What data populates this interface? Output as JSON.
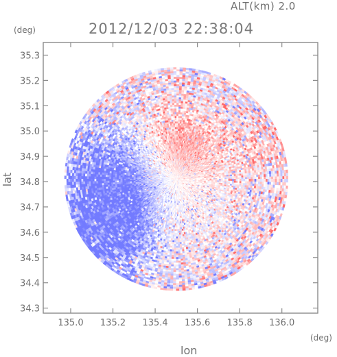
{
  "header": {
    "altitude_text": "ALT(km) 2.0",
    "datetime": "2012/12/03 22:38:04"
  },
  "axes": {
    "x_label": "lon",
    "y_label": "lat",
    "x_unit": "(deg)",
    "y_unit": "(deg)"
  },
  "chart_data": {
    "type": "heatmap",
    "xlim": [
      134.87,
      136.17
    ],
    "ylim": [
      34.28,
      35.35
    ],
    "x_ticks": [
      135.0,
      135.2,
      135.4,
      135.6,
      135.8,
      136.0
    ],
    "y_ticks": [
      34.3,
      34.4,
      34.5,
      34.6,
      34.7,
      34.8,
      34.9,
      35.0,
      35.1,
      35.2,
      35.3
    ],
    "x_tick_labels": [
      "135.0",
      "135.2",
      "135.4",
      "135.6",
      "135.8",
      "136.0"
    ],
    "y_tick_labels": [
      "34.3",
      "34.4",
      "34.5",
      "34.6",
      "34.7",
      "34.8",
      "34.9",
      "35.0",
      "35.1",
      "35.2",
      "35.3"
    ],
    "radar_center": [
      135.5,
      34.81
    ],
    "radar_radius_deg": 0.53,
    "colors": {
      "positive": "#f06a6a",
      "negative": "#6f77f0",
      "neutral": "#ffffff",
      "frame": "#8a8a8a",
      "tick_text": "#6f6f6f"
    }
  }
}
